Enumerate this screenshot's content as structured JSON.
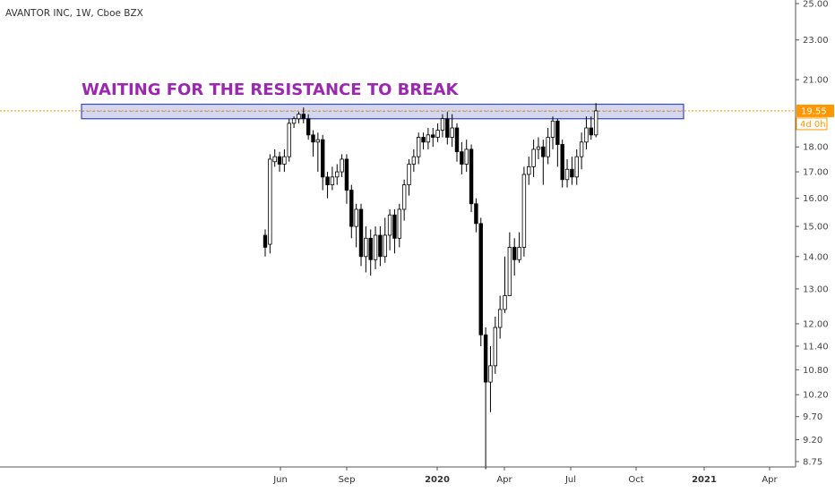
{
  "header": {
    "symbol_line": "AVANTOR INC, 1W, Cboe BZX"
  },
  "annotation": {
    "text": "WAITING FOR THE RESISTANCE TO BREAK",
    "color": "#9c27b0"
  },
  "colors": {
    "candle_up_fill": "#ffffff",
    "candle_down_fill": "#000000",
    "candle_stroke": "#000000",
    "price_line": "#ff9800",
    "zone_fill": "#c5cae9",
    "zone_stroke": "#3949ab",
    "axis_line": "#555555"
  },
  "price_badge": {
    "value": "19.55",
    "timer": "4d 0h"
  },
  "chart_data": {
    "type": "candlestick",
    "title": "AVANTOR INC, 1W, Cboe BZX",
    "scale": "log",
    "ylim": [
      8.6,
      25.4
    ],
    "y_ticks": [
      "25.00",
      "23.00",
      "21.00",
      "19.55",
      "18.00",
      "17.00",
      "16.00",
      "15.00",
      "14.00",
      "13.00",
      "12.00",
      "11.40",
      "10.80",
      "10.20",
      "9.70",
      "9.20",
      "8.75"
    ],
    "x_ticks": [
      {
        "label": "Jun",
        "bold": false
      },
      {
        "label": "Sep",
        "bold": false
      },
      {
        "label": "2020",
        "bold": true
      },
      {
        "label": "Apr",
        "bold": false
      },
      {
        "label": "Jul",
        "bold": false
      },
      {
        "label": "Oct",
        "bold": false
      },
      {
        "label": "2021",
        "bold": true
      },
      {
        "label": "Apr",
        "bold": false
      }
    ],
    "resistance_zone": {
      "low": 19.2,
      "high": 19.85
    },
    "last_price": 19.55,
    "candles": [
      [
        14.7,
        14.3,
        14.9,
        14.0
      ],
      [
        14.4,
        17.5,
        17.7,
        14.1
      ],
      [
        17.4,
        17.6,
        17.9,
        17.2
      ],
      [
        17.6,
        17.3,
        17.8,
        17.0
      ],
      [
        17.3,
        17.6,
        17.9,
        17.0
      ],
      [
        17.6,
        19.0,
        19.2,
        17.4
      ],
      [
        19.0,
        19.2,
        19.3,
        18.8
      ],
      [
        19.2,
        19.4,
        19.5,
        19.0
      ],
      [
        19.4,
        19.2,
        19.7,
        19.0
      ],
      [
        19.2,
        18.5,
        19.4,
        18.3
      ],
      [
        18.5,
        18.2,
        18.7,
        17.6
      ],
      [
        18.2,
        18.3,
        18.6,
        17.0
      ],
      [
        18.3,
        16.8,
        18.5,
        16.3
      ],
      [
        16.8,
        16.5,
        17.0,
        16.0
      ],
      [
        16.5,
        16.8,
        17.2,
        16.3
      ],
      [
        16.8,
        17.0,
        17.3,
        16.5
      ],
      [
        17.0,
        17.5,
        17.7,
        16.8
      ],
      [
        17.5,
        16.3,
        17.7,
        15.8
      ],
      [
        16.3,
        15.0,
        16.5,
        14.6
      ],
      [
        15.0,
        15.6,
        15.8,
        14.3
      ],
      [
        15.6,
        14.0,
        15.8,
        13.7
      ],
      [
        14.0,
        14.6,
        15.0,
        13.5
      ],
      [
        14.6,
        13.9,
        14.9,
        13.4
      ],
      [
        13.9,
        14.7,
        15.0,
        13.6
      ],
      [
        14.7,
        14.0,
        15.0,
        13.7
      ],
      [
        14.0,
        14.7,
        15.3,
        13.8
      ],
      [
        14.7,
        15.4,
        15.6,
        14.2
      ],
      [
        15.4,
        14.6,
        15.6,
        14.1
      ],
      [
        14.6,
        15.6,
        15.8,
        14.3
      ],
      [
        15.6,
        16.5,
        16.7,
        15.2
      ],
      [
        16.5,
        17.3,
        17.5,
        16.1
      ],
      [
        17.3,
        17.6,
        17.9,
        17.0
      ],
      [
        17.6,
        18.4,
        18.6,
        17.3
      ],
      [
        18.4,
        18.2,
        18.6,
        17.9
      ],
      [
        18.2,
        18.5,
        18.8,
        17.9
      ],
      [
        18.5,
        18.4,
        18.8,
        18.0
      ],
      [
        18.4,
        18.7,
        19.0,
        18.2
      ],
      [
        18.7,
        19.2,
        19.4,
        18.4
      ],
      [
        19.2,
        18.4,
        19.5,
        18.1
      ],
      [
        18.4,
        18.8,
        19.4,
        18.0
      ],
      [
        18.8,
        17.8,
        19.0,
        17.4
      ],
      [
        17.8,
        17.3,
        18.2,
        16.9
      ],
      [
        17.3,
        17.9,
        18.3,
        17.0
      ],
      [
        17.9,
        15.8,
        18.1,
        15.5
      ],
      [
        15.8,
        15.1,
        16.0,
        14.8
      ],
      [
        15.1,
        11.7,
        15.3,
        11.4
      ],
      [
        11.7,
        10.5,
        11.9,
        8.6
      ],
      [
        10.5,
        10.9,
        11.4,
        9.8
      ],
      [
        10.9,
        11.9,
        12.2,
        10.7
      ],
      [
        11.9,
        12.4,
        12.8,
        11.6
      ],
      [
        12.4,
        12.8,
        14.0,
        12.3
      ],
      [
        12.8,
        14.3,
        14.8,
        13.3
      ],
      [
        14.3,
        13.9,
        14.6,
        13.4
      ],
      [
        13.9,
        14.3,
        14.8,
        13.8
      ],
      [
        14.3,
        16.9,
        17.2,
        14.0
      ],
      [
        16.9,
        17.2,
        17.6,
        16.5
      ],
      [
        17.2,
        17.9,
        18.3,
        16.8
      ],
      [
        17.9,
        18.0,
        18.4,
        17.5
      ],
      [
        18.0,
        17.6,
        18.3,
        16.5
      ],
      [
        17.6,
        18.4,
        18.8,
        17.3
      ],
      [
        18.4,
        19.1,
        19.3,
        17.9
      ],
      [
        19.1,
        18.1,
        19.2,
        17.2
      ],
      [
        18.1,
        16.7,
        18.3,
        16.4
      ],
      [
        16.7,
        17.1,
        17.5,
        16.4
      ],
      [
        17.1,
        16.8,
        17.6,
        16.5
      ],
      [
        16.8,
        17.6,
        17.9,
        16.5
      ],
      [
        17.6,
        18.2,
        18.6,
        17.1
      ],
      [
        18.2,
        18.8,
        19.3,
        17.9
      ],
      [
        18.8,
        18.5,
        19.3,
        18.3
      ],
      [
        18.5,
        19.55,
        19.9,
        18.4
      ]
    ]
  }
}
